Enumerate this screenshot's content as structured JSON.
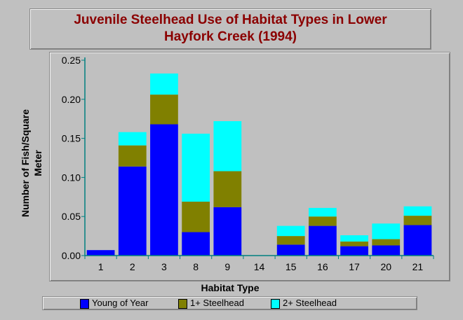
{
  "chart_data": {
    "type": "bar",
    "stacked": true,
    "title": "Juvenile Steelhead Use of Habitat Types in Lower Hayfork Creek (1994)",
    "title_lines": [
      "Juvenile Steelhead Use of Habitat Types in Lower",
      "Hayfork Creek (1994)"
    ],
    "xlabel": "Habitat Type",
    "ylabel_lines": [
      "Number of Fish/Square",
      "Meter"
    ],
    "categories": [
      "1",
      "2",
      "3",
      "8",
      "9",
      "14",
      "15",
      "16",
      "17",
      "20",
      "21"
    ],
    "ylim": [
      0,
      0.25
    ],
    "yticks": [
      "0.00",
      "0.05",
      "0.10",
      "0.15",
      "0.20",
      "0.25"
    ],
    "grid": false,
    "legend_position": "bottom",
    "series": [
      {
        "name": "Young of Year",
        "color": "#0000ff",
        "values": [
          0.007,
          0.114,
          0.168,
          0.03,
          0.062,
          0,
          0.014,
          0.038,
          0.012,
          0.013,
          0.039
        ]
      },
      {
        "name": "1+ Steelhead",
        "color": "#808000",
        "values": [
          0,
          0.027,
          0.038,
          0.039,
          0.046,
          0,
          0.011,
          0.012,
          0.006,
          0.008,
          0.012
        ]
      },
      {
        "name": "2+ Steelhead",
        "color": "#00ffff",
        "values": [
          0,
          0.017,
          0.027,
          0.087,
          0.064,
          0,
          0.013,
          0.011,
          0.008,
          0.02,
          0.012
        ]
      }
    ]
  }
}
